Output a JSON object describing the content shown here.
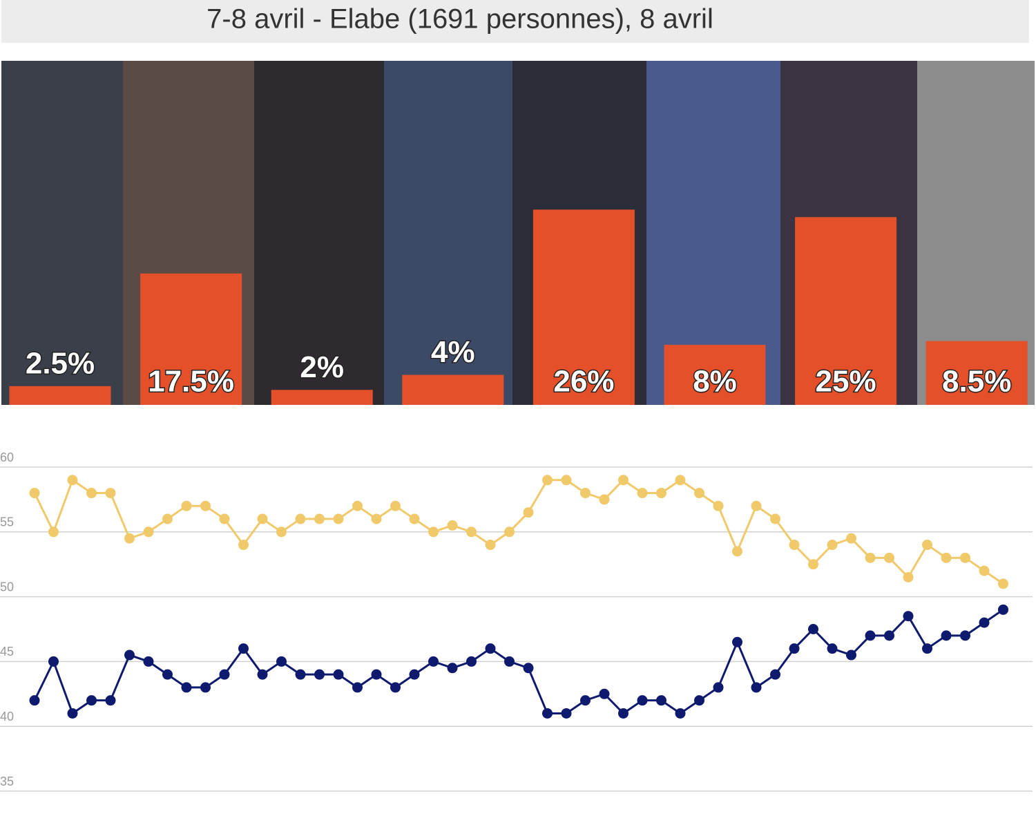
{
  "chart_data": [
    {
      "type": "bar",
      "title": "7-8 avril - Elabe (1691 personnes), 8 avril",
      "categories": [
        null,
        null,
        null,
        null,
        null,
        null,
        null,
        null
      ],
      "values": [
        2.5,
        17.5,
        2,
        4,
        26,
        8,
        25,
        8.5
      ],
      "value_labels": [
        "2.5%",
        "17.5%",
        "2%",
        "4%",
        "26%",
        "8%",
        "25%",
        "8.5%"
      ],
      "color": "#e4502a"
    },
    {
      "type": "line",
      "categories": [
        null,
        null,
        null,
        null,
        null,
        null,
        null,
        null,
        null,
        null,
        null,
        null,
        null,
        null,
        null,
        null,
        null,
        null,
        null,
        null,
        null,
        null,
        null,
        null,
        null,
        null,
        null,
        null,
        null,
        null,
        null,
        null,
        null,
        null,
        null,
        null,
        null,
        null,
        null,
        null,
        null,
        null,
        null,
        null,
        null,
        null,
        null,
        null,
        null,
        null,
        null,
        null
      ],
      "series": [
        {
          "color": "#f0c96a",
          "values": [
            58,
            55,
            59,
            58,
            58,
            54.5,
            55,
            56,
            57,
            57,
            56,
            54,
            56,
            55,
            56,
            56,
            56,
            57,
            56,
            57,
            56,
            55,
            55.5,
            55,
            54,
            55,
            56.5,
            59,
            59,
            58,
            57.5,
            59,
            58,
            58,
            59,
            58,
            57,
            53.5,
            57,
            56,
            54,
            52.5,
            54,
            54.5,
            53,
            53,
            51.5,
            54,
            53,
            53,
            52,
            51
          ]
        },
        {
          "color": "#0d1a6e",
          "values": [
            42,
            45,
            41,
            42,
            42,
            45.5,
            45,
            44,
            43,
            43,
            44,
            46,
            44,
            45,
            44,
            44,
            44,
            43,
            44,
            43,
            44,
            45,
            44.5,
            45,
            46,
            45,
            44.5,
            41,
            41,
            42,
            42.5,
            41,
            42,
            42,
            41,
            42,
            43,
            46.5,
            43,
            44,
            46,
            47.5,
            46,
            45.5,
            47,
            47,
            48.5,
            46,
            47,
            47,
            48,
            49
          ]
        }
      ],
      "ylim": [
        35,
        60
      ],
      "yticks": [
        35,
        40,
        45,
        50,
        55,
        60
      ],
      "grid": true
    }
  ]
}
